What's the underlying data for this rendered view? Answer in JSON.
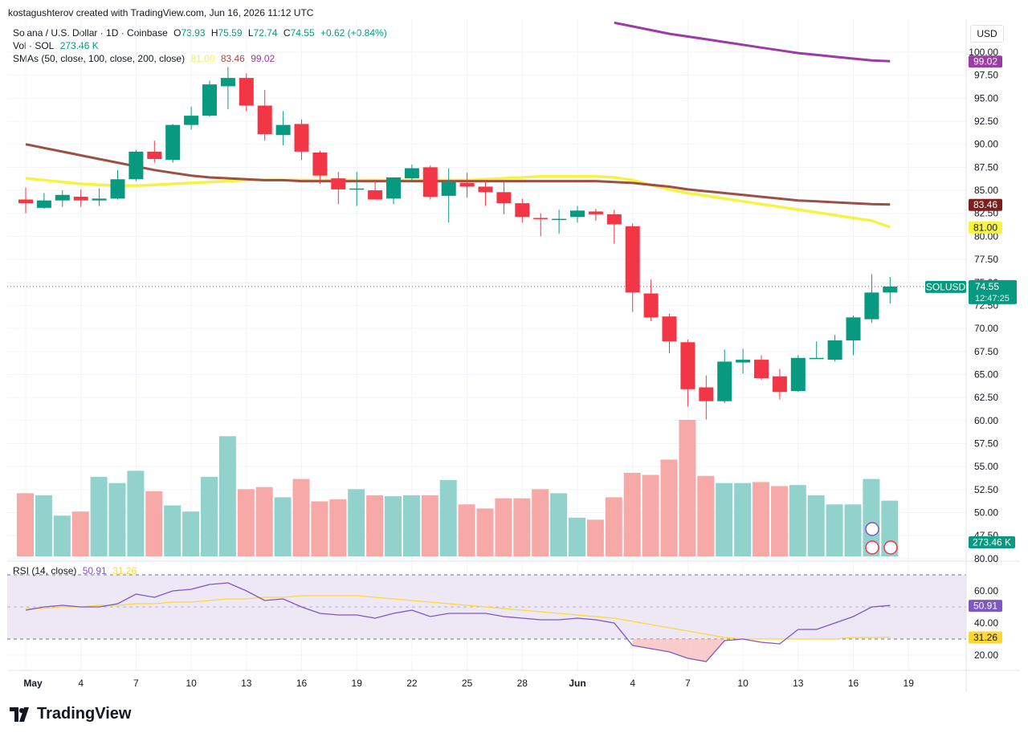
{
  "header": {
    "attribution": "kostagushterov created with TradingView.com, Jun 16, 2026 11:12 UTC",
    "symbol": "Solana / U.S. Dollar · 1D · Coinbase",
    "o_label": "O",
    "o_val": "73.93",
    "h_label": "H",
    "h_val": "75.59",
    "l_label": "L",
    "l_val": "72.74",
    "c_label": "C",
    "c_val": "74.55",
    "change": "+0.62 (+0.84%)",
    "vol_label": "Vol · SOL",
    "vol_val": "273.46 K",
    "sma_label": "SMAs (50, close, 100, close, 200, close)",
    "sma50_val": "81.00",
    "sma100_val": "83.46",
    "sma200_val": "99.02",
    "rsi_label": "RSI (14, close)",
    "rsi_val": "50.91",
    "rsi_ma_val": "31.26",
    "currency": "USD"
  },
  "brand": "TradingView",
  "colors": {
    "up": "#089981",
    "down": "#f23645",
    "vol_up": "#92d2cc",
    "vol_down": "#f7a9a7",
    "sma50": "#f7f345",
    "sma100": "#9c4f45",
    "sma200": "#9c3aa6",
    "rsi": "#7e57c2",
    "rsi_ma": "#fdd835",
    "rsi_band": "#ede7f6"
  },
  "chart_data": {
    "type": "candlestick",
    "title": "Solana / U.S. Dollar · 1D · Coinbase",
    "price_axis": {
      "ylim": [
        45.0,
        102.5
      ],
      "ticks": [
        "47.50",
        "50.00",
        "52.50",
        "55.00",
        "57.50",
        "60.00",
        "62.50",
        "65.00",
        "67.50",
        "70.00",
        "72.50",
        "75.00",
        "77.50",
        "80.00",
        "82.50",
        "85.00",
        "87.50",
        "90.00",
        "92.50",
        "95.00",
        "97.50",
        "100.00"
      ]
    },
    "x_axis": {
      "labels": [
        "May",
        "4",
        "7",
        "10",
        "13",
        "16",
        "19",
        "22",
        "25",
        "28",
        "Jun",
        "4",
        "7",
        "10",
        "13",
        "16",
        "19"
      ]
    },
    "ohlc": [
      [
        84.0,
        85.3,
        82.5,
        83.6
      ],
      [
        83.1,
        84.7,
        83.0,
        83.9
      ],
      [
        83.9,
        85.0,
        83.2,
        84.5
      ],
      [
        84.3,
        85.1,
        83.2,
        83.9
      ],
      [
        83.9,
        85.2,
        83.3,
        84.1
      ],
      [
        84.1,
        87.2,
        84.0,
        86.2
      ],
      [
        86.2,
        89.4,
        86.0,
        89.2
      ],
      [
        89.2,
        90.4,
        88.0,
        88.4
      ],
      [
        88.3,
        92.2,
        88.0,
        92.1
      ],
      [
        92.1,
        94.1,
        91.6,
        93.1
      ],
      [
        93.1,
        96.9,
        93.0,
        96.5
      ],
      [
        96.3,
        98.4,
        93.8,
        97.2
      ],
      [
        97.2,
        97.7,
        93.6,
        94.2
      ],
      [
        94.2,
        95.9,
        90.4,
        91.1
      ],
      [
        91.0,
        93.6,
        89.9,
        92.1
      ],
      [
        92.2,
        92.7,
        88.3,
        89.2
      ],
      [
        89.1,
        89.3,
        85.7,
        86.6
      ],
      [
        86.3,
        87.0,
        83.5,
        85.1
      ],
      [
        85.2,
        87.0,
        83.3,
        85.2
      ],
      [
        85.0,
        86.1,
        84.1,
        84.0
      ],
      [
        84.1,
        86.4,
        83.5,
        86.4
      ],
      [
        86.3,
        87.8,
        86.0,
        87.4
      ],
      [
        87.5,
        87.7,
        84.0,
        84.3
      ],
      [
        84.4,
        87.4,
        81.5,
        85.9
      ],
      [
        85.8,
        86.9,
        84.2,
        85.4
      ],
      [
        85.4,
        86.1,
        83.3,
        84.8
      ],
      [
        84.8,
        85.9,
        82.4,
        83.6
      ],
      [
        83.6,
        84.1,
        81.5,
        82.1
      ],
      [
        82.0,
        82.5,
        80.0,
        81.9
      ],
      [
        81.9,
        82.9,
        80.3,
        81.9
      ],
      [
        82.1,
        83.3,
        81.5,
        82.8
      ],
      [
        82.7,
        83.0,
        81.7,
        82.4
      ],
      [
        82.4,
        82.9,
        79.2,
        81.3
      ],
      [
        81.1,
        81.4,
        71.8,
        73.9
      ],
      [
        73.8,
        75.3,
        70.8,
        71.2
      ],
      [
        71.3,
        71.6,
        67.3,
        68.6
      ],
      [
        68.5,
        68.8,
        61.5,
        63.4
      ],
      [
        63.6,
        64.9,
        60.1,
        62.1
      ],
      [
        62.1,
        67.7,
        61.9,
        66.4
      ],
      [
        66.3,
        67.8,
        65.1,
        66.6
      ],
      [
        66.6,
        67.1,
        64.4,
        64.6
      ],
      [
        64.8,
        65.6,
        62.3,
        63.1
      ],
      [
        63.2,
        67.1,
        63.1,
        66.8
      ],
      [
        66.8,
        68.6,
        66.7,
        66.8
      ],
      [
        66.6,
        69.3,
        66.4,
        68.7
      ],
      [
        68.7,
        71.4,
        67.1,
        71.2
      ],
      [
        71.0,
        75.9,
        70.6,
        73.9
      ],
      [
        73.9,
        75.6,
        72.7,
        74.55
      ]
    ],
    "volume_k": [
      310,
      300,
      200,
      220,
      390,
      360,
      420,
      320,
      250,
      220,
      390,
      590,
      330,
      340,
      290,
      380,
      270,
      280,
      330,
      300,
      295,
      300,
      300,
      375,
      255,
      235,
      285,
      285,
      330,
      310,
      190,
      180,
      290,
      410,
      400,
      475,
      670,
      395,
      360,
      360,
      365,
      345,
      350,
      300,
      255,
      255,
      380,
      273.46
    ],
    "sma50": [
      86.3,
      86.1,
      85.9,
      85.7,
      85.6,
      85.5,
      85.5,
      85.6,
      85.7,
      85.8,
      85.9,
      86.0,
      86.1,
      86.1,
      86.1,
      86.1,
      86.1,
      86.1,
      86.1,
      86.1,
      86.1,
      86.1,
      86.1,
      86.1,
      86.1,
      86.2,
      86.3,
      86.4,
      86.5,
      86.5,
      86.5,
      86.5,
      86.4,
      86.1,
      85.6,
      85.1,
      84.7,
      84.4,
      84.1,
      83.8,
      83.5,
      83.2,
      82.9,
      82.6,
      82.3,
      82.0,
      81.7,
      81.0
    ],
    "sma100": [
      90.0,
      89.6,
      89.2,
      88.8,
      88.4,
      88.0,
      87.6,
      87.2,
      86.9,
      86.6,
      86.4,
      86.3,
      86.2,
      86.1,
      86.1,
      86.0,
      86.0,
      86.0,
      86.0,
      86.0,
      86.0,
      86.0,
      86.0,
      86.0,
      86.0,
      86.0,
      86.0,
      86.0,
      86.0,
      86.0,
      86.0,
      86.0,
      85.9,
      85.8,
      85.6,
      85.4,
      85.1,
      84.9,
      84.7,
      84.5,
      84.3,
      84.1,
      83.9,
      83.8,
      83.7,
      83.6,
      83.5,
      83.46
    ],
    "sma200": [
      null,
      null,
      null,
      null,
      null,
      null,
      null,
      null,
      null,
      null,
      null,
      null,
      null,
      null,
      null,
      null,
      null,
      null,
      null,
      null,
      null,
      null,
      null,
      null,
      null,
      null,
      null,
      null,
      null,
      null,
      null,
      null,
      103.2,
      102.8,
      102.4,
      102.0,
      101.7,
      101.4,
      101.1,
      100.8,
      100.5,
      100.2,
      99.9,
      99.7,
      99.5,
      99.3,
      99.1,
      99.02
    ],
    "last_price": "74.55",
    "countdown": "12:47:25",
    "symbol_tag": "SOLUSD",
    "volume_tag": "273.46 K",
    "rsi_axis": {
      "ylim": [
        10,
        90
      ],
      "ticks": [
        "20.00",
        "40.00",
        "60.00",
        "80.00"
      ],
      "upper_band": 70,
      "lower_band": 30
    },
    "rsi": [
      48,
      50,
      51,
      50,
      50,
      52,
      58,
      56,
      60,
      61,
      64,
      65,
      60,
      54,
      55,
      50,
      46,
      45,
      45,
      43,
      46,
      48,
      44,
      46,
      46,
      46,
      44,
      43,
      42,
      42,
      43,
      42,
      40,
      26,
      24,
      22,
      18,
      16,
      29,
      30,
      28,
      27,
      36,
      36,
      40,
      44,
      50,
      50.91
    ],
    "rsi_ma": [
      49,
      49,
      50,
      50,
      51,
      51,
      52,
      52,
      53,
      53,
      54,
      55,
      55,
      56,
      56,
      57,
      57,
      57,
      57,
      56,
      55,
      54,
      53,
      52,
      51,
      50,
      49,
      48,
      47,
      46,
      45,
      44,
      43,
      41,
      39,
      37,
      35,
      33,
      31,
      30,
      30,
      30,
      30,
      30,
      30,
      31,
      31,
      31.26
    ]
  }
}
